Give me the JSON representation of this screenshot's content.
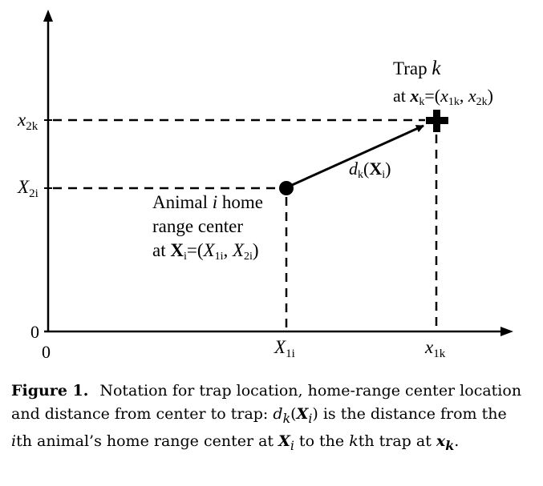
{
  "axes": {
    "origin_x": "0",
    "origin_y": "0"
  },
  "ticks": {
    "x2k": {
      "base": "x",
      "sub": "2k"
    },
    "X2i": {
      "base": "X",
      "sub": "2i"
    },
    "X1i": {
      "base": "X",
      "sub": "1i"
    },
    "x1k": {
      "base": "x",
      "sub": "1k"
    }
  },
  "trap": {
    "title_prefix": "Trap ",
    "title_var": "k",
    "loc_prefix": "at ",
    "loc_var": "x",
    "loc_var_sub": "k",
    "loc_eq": "=(",
    "loc_c1": "x",
    "loc_c1_sub": "1k",
    "loc_sep": ", ",
    "loc_c2": "x",
    "loc_c2_sub": "2k",
    "loc_close": ")"
  },
  "distance": {
    "d": "d",
    "d_sub": "k",
    "open": "(",
    "X": "X",
    "X_sub": "i",
    "close": ")"
  },
  "animal": {
    "line1_prefix": "Animal ",
    "line1_var": "i",
    "line1_suffix": " home",
    "line2": "range center",
    "line3_prefix": "at ",
    "line3_var": "X",
    "line3_var_sub": "i",
    "line3_eq": "=(",
    "line3_c1": "X",
    "line3_c1_sub": "1i",
    "line3_sep": ", ",
    "line3_c2": "X",
    "line3_c2_sub": "2i",
    "line3_close": ")"
  },
  "caption": {
    "label": "Figure 1.",
    "part1": "Notation for trap location, home-range center location and distance from center to trap: ",
    "d": "d",
    "d_sub": "k",
    "open": "(",
    "X": "X",
    "X_sub": "i",
    "part2": ") is the distance from the ",
    "i": "i",
    "part3": "th animal’s home range center at ",
    "X2": "X",
    "X2_sub": "i",
    "part4": " to the ",
    "k": "k",
    "part5": "th trap at ",
    "x": "x",
    "x_sub": "k",
    "part6": "."
  }
}
